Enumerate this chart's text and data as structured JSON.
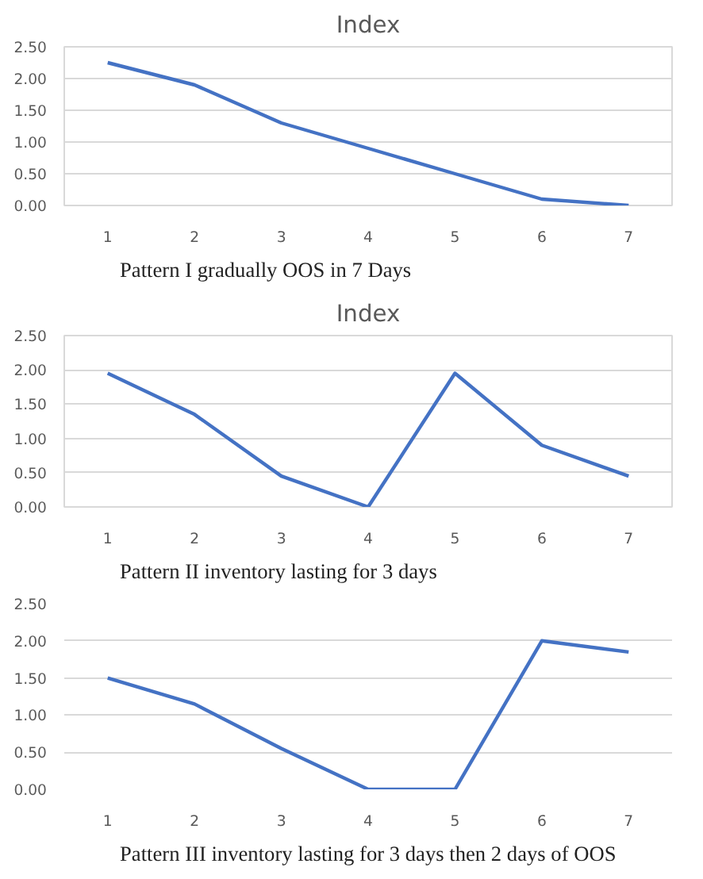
{
  "chart_data": [
    {
      "type": "line",
      "title": "Index",
      "categories": [
        "1",
        "2",
        "3",
        "4",
        "5",
        "6",
        "7"
      ],
      "series": [
        {
          "color": "#4472c4",
          "values": [
            2.25,
            1.9,
            1.3,
            0.9,
            0.5,
            0.1,
            0.0
          ]
        }
      ],
      "ylim": [
        0,
        2.5
      ],
      "yticks": [
        {
          "value": 0,
          "label": "0.00"
        },
        {
          "value": 0.5,
          "label": "0.50"
        },
        {
          "value": 1,
          "label": "1.00"
        },
        {
          "value": 1.5,
          "label": "1.50"
        },
        {
          "value": 2,
          "label": "2.00"
        },
        {
          "value": 2.5,
          "label": "2.50"
        }
      ],
      "grid": "y",
      "annotations": [
        "Pattern I gradually OOS in 7 Days"
      ]
    },
    {
      "type": "line",
      "title": "Index",
      "categories": [
        "1",
        "2",
        "3",
        "4",
        "5",
        "6",
        "7"
      ],
      "series": [
        {
          "color": "#4472c4",
          "values": [
            1.95,
            1.35,
            0.45,
            0.0,
            1.95,
            0.9,
            0.45
          ]
        }
      ],
      "ylim": [
        0,
        2.5
      ],
      "yticks": [
        {
          "value": 0,
          "label": "0.00"
        },
        {
          "value": 0.5,
          "label": "0.50"
        },
        {
          "value": 1,
          "label": "1.00"
        },
        {
          "value": 1.5,
          "label": "1.50"
        },
        {
          "value": 2,
          "label": "2.00"
        },
        {
          "value": 2.5,
          "label": "2.50"
        }
      ],
      "grid": "y",
      "annotations": [
        "Pattern II inventory lasting for 3 days"
      ]
    },
    {
      "type": "line",
      "categories": [
        "1",
        "2",
        "3",
        "4",
        "5",
        "6",
        "7"
      ],
      "series": [
        {
          "color": "#4472c4",
          "values": [
            1.5,
            1.15,
            0.55,
            0.0,
            0.0,
            2.0,
            1.85
          ]
        }
      ],
      "ylim": [
        0,
        2.5
      ],
      "yticks": [
        {
          "value": 0,
          "label": "0.00"
        },
        {
          "value": 0.5,
          "label": "0.50"
        },
        {
          "value": 1,
          "label": "1.00"
        },
        {
          "value": 1.5,
          "label": "1.50"
        },
        {
          "value": 2,
          "label": "2.00"
        },
        {
          "value": 2.5,
          "label": "2.50"
        }
      ],
      "grid": "y",
      "annotations": [
        "Pattern III inventory lasting for 3 days then 2 days of OOS"
      ]
    }
  ]
}
